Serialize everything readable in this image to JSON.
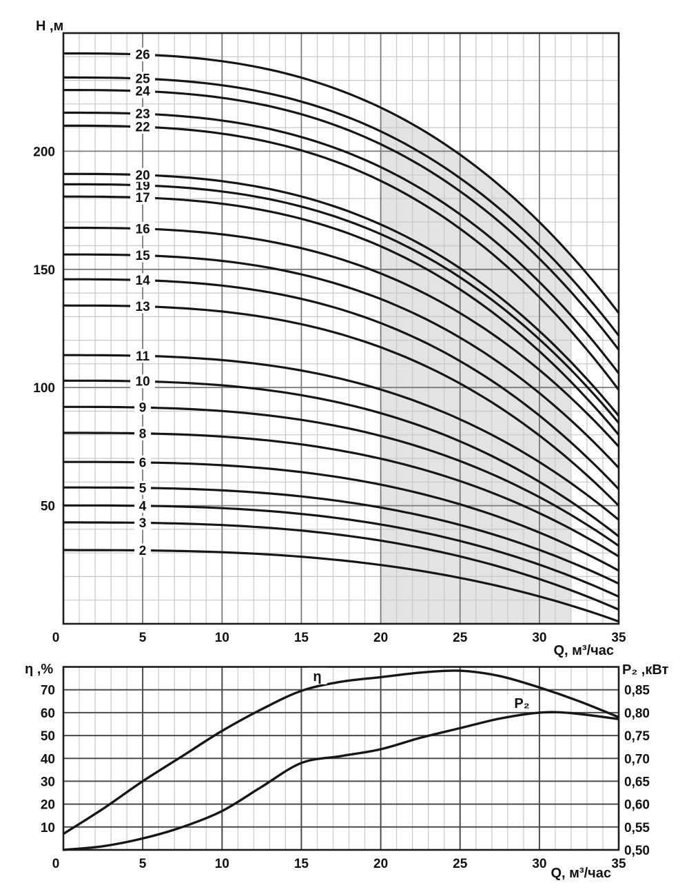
{
  "colors": {
    "background": "#ffffff",
    "curve": "#161616",
    "grid_minor": "#c8c8c8",
    "grid_major": "#7a7a7a",
    "grid_strong": "#4a4a4a",
    "border": "#1c1c1c",
    "shade": "#e3e3e3",
    "text": "#111111",
    "label_bg": "#ffffff"
  },
  "chart_data": [
    {
      "type": "line",
      "name": "head-flow-curves",
      "xlabel": "Q, м³/час",
      "ylabel": "H ,м",
      "xlim": [
        0,
        35
      ],
      "ylim": [
        0,
        250
      ],
      "x_major_ticks": [
        0,
        5,
        10,
        15,
        20,
        25,
        30,
        35
      ],
      "y_major_ticks": [
        50,
        100,
        150,
        200
      ],
      "x_minor_step": 1,
      "y_minor_step": 10,
      "grid": true,
      "legend": "curve numbers = number of pump stages",
      "operating_zone": {
        "q_from": 20,
        "q_to": 32
      },
      "stage_label_q": 5,
      "droop_exponent": 2.8,
      "curves": [
        {
          "stages": "2",
          "h_at_0": 31.2,
          "h_at_35": 1
        },
        {
          "stages": "3",
          "h_at_0": 42.9,
          "h_at_35": 6
        },
        {
          "stages": "4",
          "h_at_0": 50.1,
          "h_at_35": 11.5
        },
        {
          "stages": "5",
          "h_at_0": 57.7,
          "h_at_35": 17
        },
        {
          "stages": "6",
          "h_at_0": 68.5,
          "h_at_35": 22.5
        },
        {
          "stages": "8",
          "h_at_0": 80.8,
          "h_at_35": 28.5
        },
        {
          "stages": "9",
          "h_at_0": 91.8,
          "h_at_35": 33
        },
        {
          "stages": "10",
          "h_at_0": 102.9,
          "h_at_35": 37
        },
        {
          "stages": "11",
          "h_at_0": 113.7,
          "h_at_35": 44
        },
        {
          "stages": "13",
          "h_at_0": 134.7,
          "h_at_35": 50
        },
        {
          "stages": "14",
          "h_at_0": 145.8,
          "h_at_35": 57
        },
        {
          "stages": "15",
          "h_at_0": 156.3,
          "h_at_35": 66
        },
        {
          "stages": "16",
          "h_at_0": 167.6,
          "h_at_35": 75
        },
        {
          "stages": "17",
          "h_at_0": 180.8,
          "h_at_35": 80
        },
        {
          "stages": "19",
          "h_at_0": 186.0,
          "h_at_35": 85
        },
        {
          "stages": "20",
          "h_at_0": 190.4,
          "h_at_35": 88
        },
        {
          "stages": "22",
          "h_at_0": 210.8,
          "h_at_35": 99
        },
        {
          "stages": "23",
          "h_at_0": 216.3,
          "h_at_35": 106
        },
        {
          "stages": "24",
          "h_at_0": 225.9,
          "h_at_35": 116
        },
        {
          "stages": "25",
          "h_at_0": 231.2,
          "h_at_35": 122
        },
        {
          "stages": "26",
          "h_at_0": 241.4,
          "h_at_35": 131.5
        }
      ]
    },
    {
      "type": "line",
      "name": "efficiency-power-curves",
      "xlabel": "Q, м³/час",
      "ylabel_left": "η ,%",
      "ylabel_right": "P₂ ,кВт",
      "xlim": [
        0,
        35
      ],
      "ylim_left": [
        0,
        80
      ],
      "ylim_right": [
        0.5,
        0.9
      ],
      "x_major_ticks": [
        0,
        5,
        10,
        15,
        20,
        25,
        30,
        35
      ],
      "y_left_ticks": [
        10,
        20,
        30,
        40,
        50,
        60,
        70
      ],
      "y_right_ticks": [
        "0,85",
        "0,80",
        "0,75",
        "0,70",
        "0,65",
        "0,60",
        "0,55",
        "0,50"
      ],
      "x_minor_step": 1,
      "series": [
        {
          "name": "η",
          "axis": "left",
          "label_q": 16.0,
          "label_v": 76,
          "points": [
            [
              0,
              7
            ],
            [
              2.5,
              18
            ],
            [
              5,
              30
            ],
            [
              7.5,
              41
            ],
            [
              10,
              52
            ],
            [
              12.5,
              61.5
            ],
            [
              15,
              69.5
            ],
            [
              17.5,
              73.5
            ],
            [
              20,
              75.5
            ],
            [
              22.5,
              77.5
            ],
            [
              25,
              78.3
            ],
            [
              27.5,
              76
            ],
            [
              30,
              71
            ],
            [
              32.5,
              65
            ],
            [
              35,
              58
            ]
          ]
        },
        {
          "name": "P₂",
          "axis": "right",
          "label_q": 28.9,
          "label_v": 0.821,
          "points": [
            [
              0,
              0.5
            ],
            [
              2.5,
              0.508
            ],
            [
              5,
              0.525
            ],
            [
              7.5,
              0.55
            ],
            [
              10,
              0.585
            ],
            [
              12.5,
              0.638
            ],
            [
              15,
              0.69
            ],
            [
              17.5,
              0.705
            ],
            [
              20,
              0.72
            ],
            [
              22.5,
              0.745
            ],
            [
              25,
              0.766
            ],
            [
              27.5,
              0.787
            ],
            [
              30,
              0.8
            ],
            [
              32,
              0.799
            ],
            [
              35,
              0.786
            ]
          ]
        }
      ]
    }
  ]
}
